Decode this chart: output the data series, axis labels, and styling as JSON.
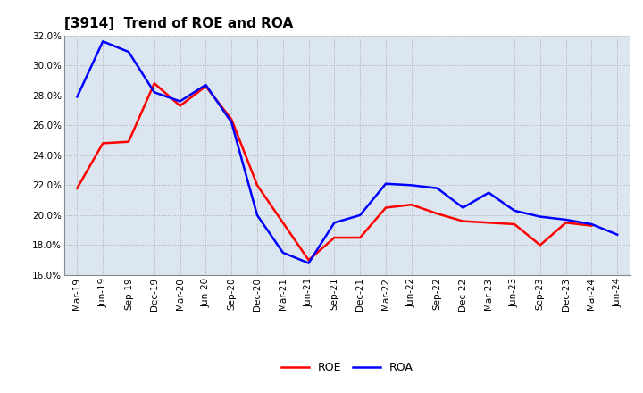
{
  "title": "[3914]  Trend of ROE and ROA",
  "labels": [
    "Mar-19",
    "Jun-19",
    "Sep-19",
    "Dec-19",
    "Mar-20",
    "Jun-20",
    "Sep-20",
    "Dec-20",
    "Mar-21",
    "Jun-21",
    "Sep-21",
    "Dec-21",
    "Mar-22",
    "Jun-22",
    "Sep-22",
    "Dec-22",
    "Mar-23",
    "Jun-23",
    "Sep-23",
    "Dec-23",
    "Mar-24",
    "Jun-24"
  ],
  "ROE": [
    21.8,
    24.8,
    24.9,
    28.8,
    27.3,
    28.6,
    26.4,
    22.0,
    19.5,
    17.0,
    18.5,
    18.5,
    20.5,
    20.7,
    20.1,
    19.6,
    19.5,
    19.4,
    18.0,
    19.5,
    19.3,
    null
  ],
  "ROA": [
    27.9,
    31.6,
    30.9,
    28.2,
    27.6,
    28.7,
    26.2,
    20.0,
    17.5,
    16.8,
    19.5,
    20.0,
    22.1,
    22.0,
    21.8,
    20.5,
    21.5,
    20.3,
    19.9,
    19.7,
    19.4,
    18.7
  ],
  "ylim": [
    16.0,
    32.0
  ],
  "yticks": [
    16.0,
    18.0,
    20.0,
    22.0,
    24.0,
    26.0,
    28.0,
    30.0,
    32.0
  ],
  "ROE_color": "#ff0000",
  "ROA_color": "#0000ff",
  "grid_color": "#aaaaaa",
  "bg_color": "#ffffff",
  "plot_bg_color": "#dce6f1",
  "line_width": 1.8,
  "title_fontsize": 11,
  "tick_fontsize": 7.5,
  "legend_fontsize": 9
}
